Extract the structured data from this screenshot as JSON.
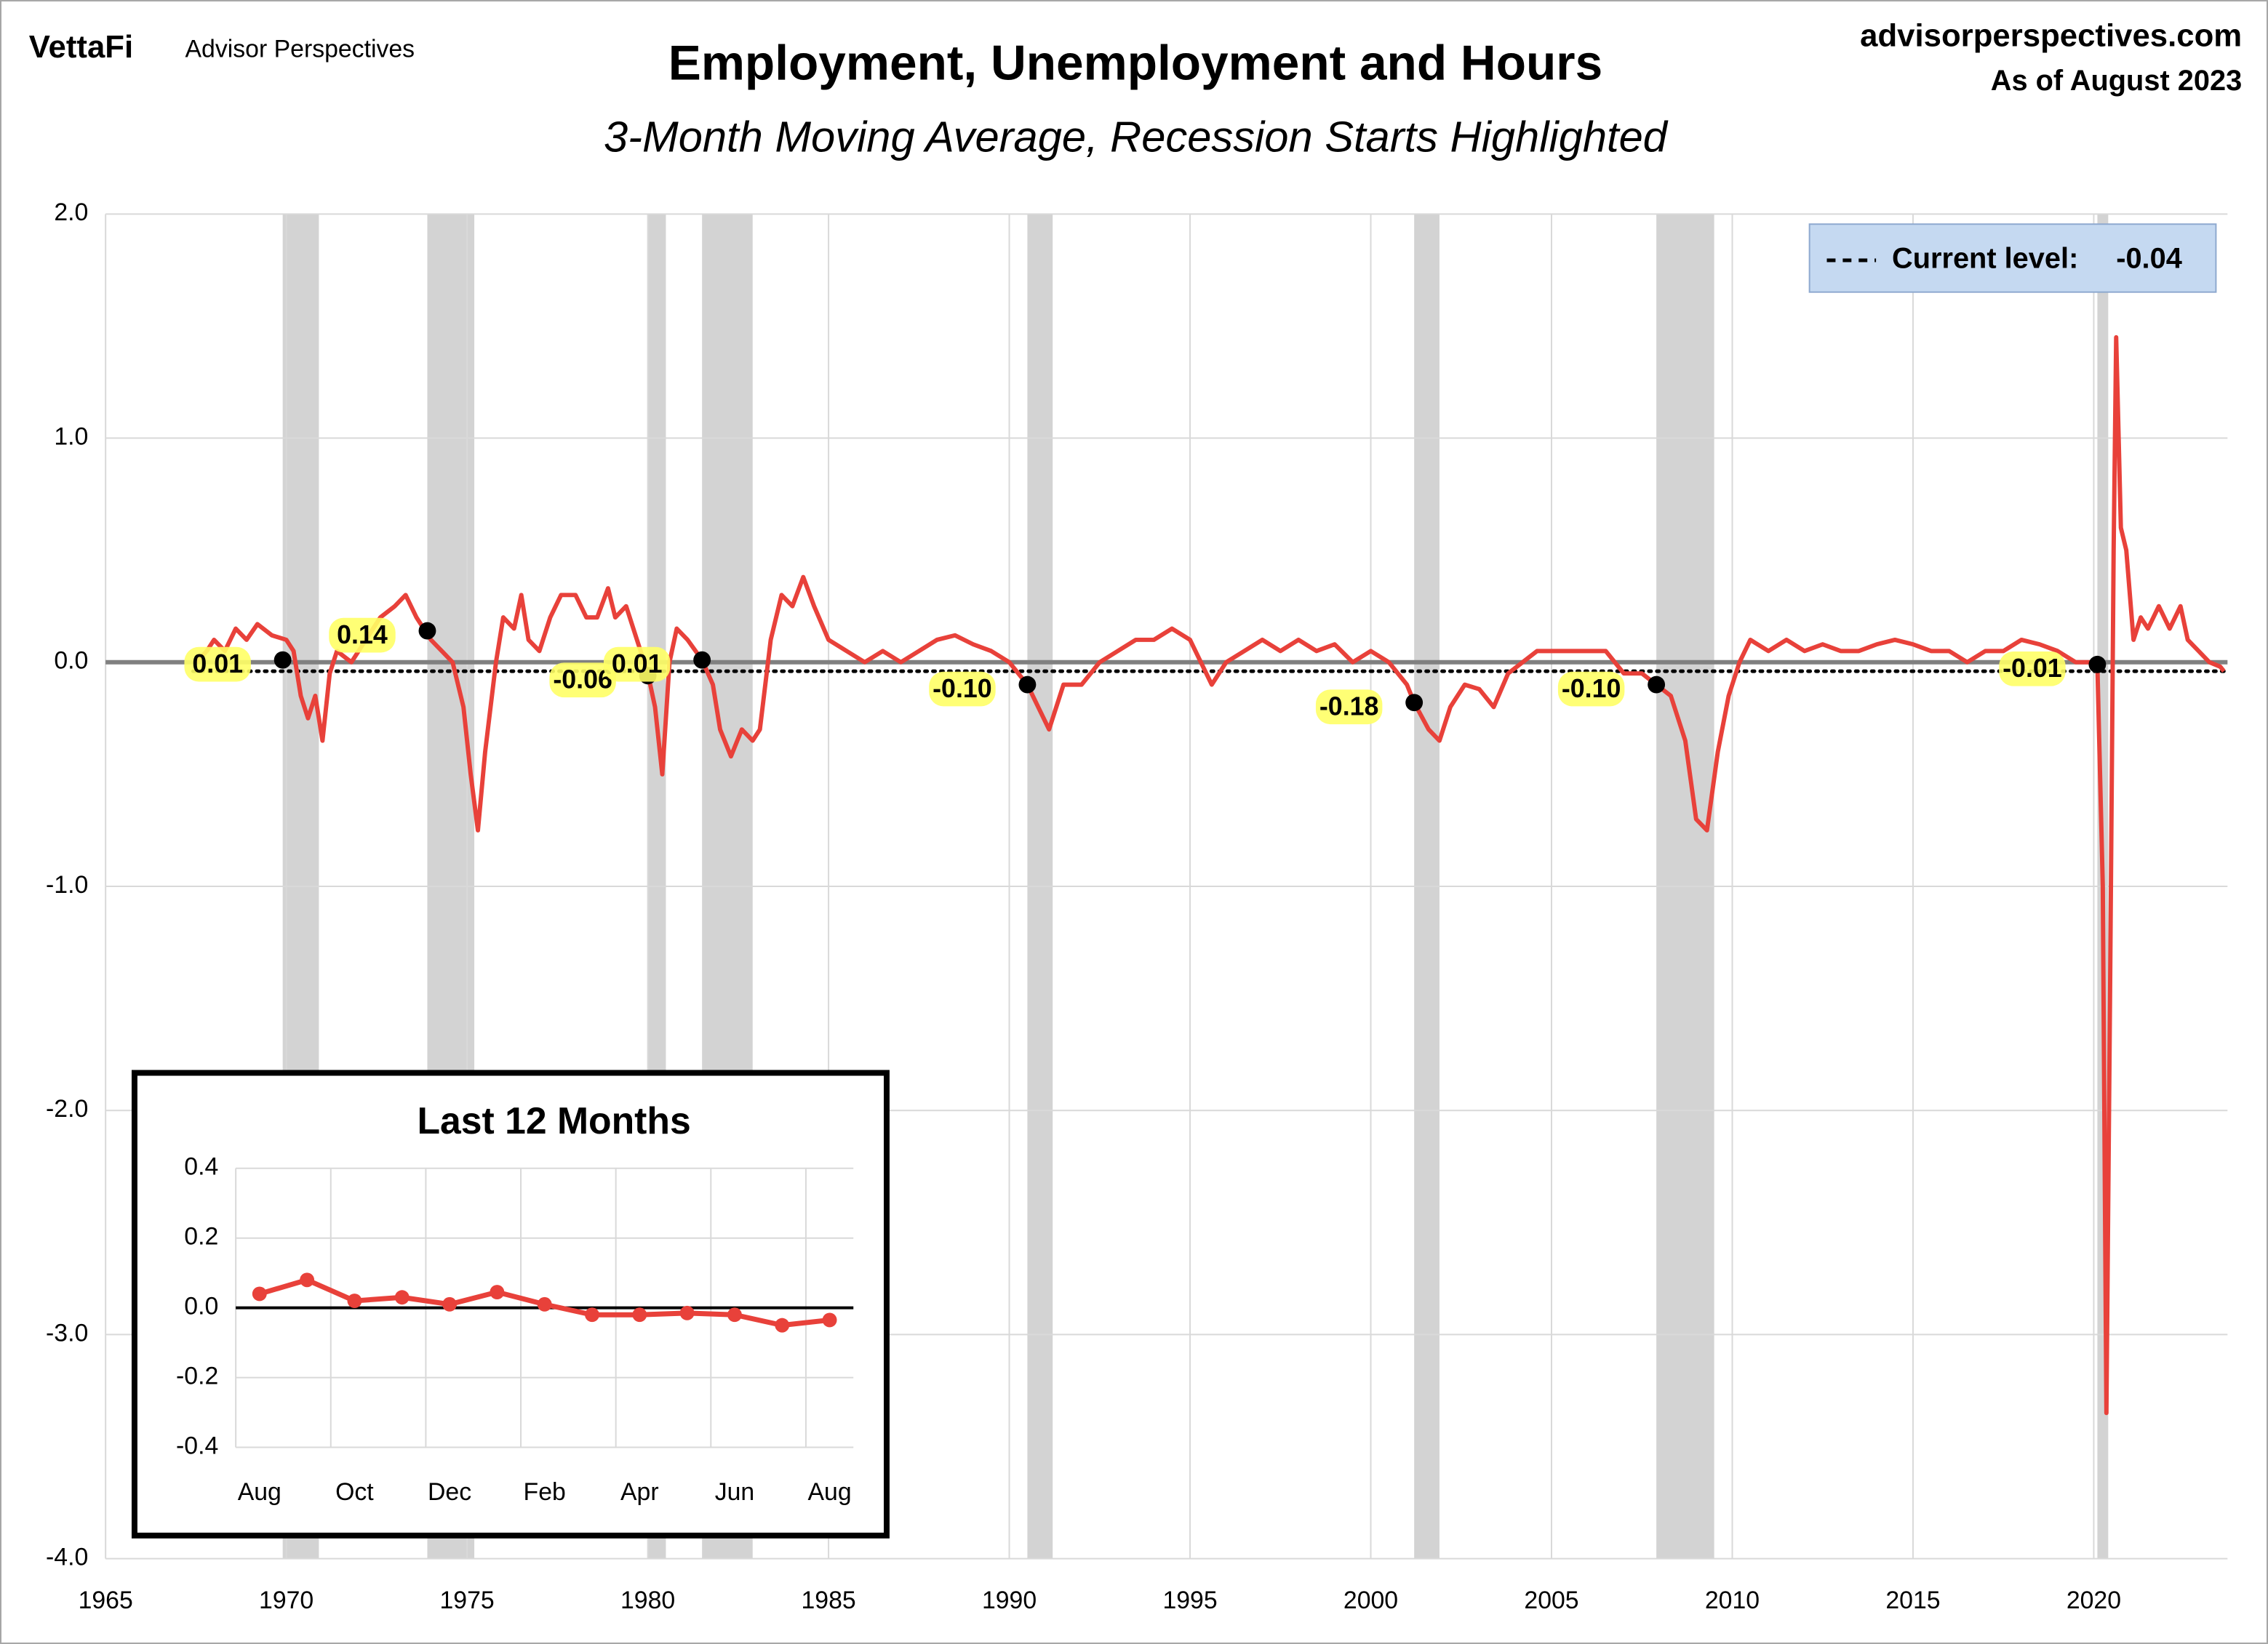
{
  "header": {
    "brand": "VettaFi",
    "brand_sub": "Advisor Perspectives",
    "site": "advisorperspectives.com",
    "as_of": "As of August 2023"
  },
  "chart_data": [
    {
      "type": "line",
      "title": "Employment, Unemployment and Hours",
      "subtitle": "3-Month Moving Average, Recession Starts Highlighted",
      "color": "#e8413a",
      "x": [
        1967.5,
        1967.8,
        1968.0,
        1968.3,
        1968.6,
        1968.9,
        1969.2,
        1969.6,
        1970.0,
        1970.2,
        1970.4,
        1970.6,
        1970.8,
        1971.0,
        1971.2,
        1971.4,
        1971.8,
        1972.2,
        1972.6,
        1973.0,
        1973.3,
        1973.6,
        1974.0,
        1974.3,
        1974.6,
        1974.9,
        1975.1,
        1975.3,
        1975.5,
        1975.8,
        1976.0,
        1976.3,
        1976.5,
        1976.7,
        1977.0,
        1977.3,
        1977.6,
        1978.0,
        1978.3,
        1978.6,
        1978.9,
        1979.1,
        1979.4,
        1979.7,
        1980.0,
        1980.2,
        1980.4,
        1980.6,
        1980.8,
        1981.1,
        1981.5,
        1981.8,
        1982.0,
        1982.3,
        1982.6,
        1982.9,
        1983.1,
        1983.4,
        1983.7,
        1984.0,
        1984.3,
        1984.6,
        1985.0,
        1985.5,
        1986.0,
        1986.5,
        1987.0,
        1987.5,
        1988.0,
        1988.5,
        1989.0,
        1989.5,
        1990.0,
        1990.5,
        1990.8,
        1991.1,
        1991.5,
        1992.0,
        1992.5,
        1993.0,
        1993.5,
        1994.0,
        1994.5,
        1995.0,
        1995.3,
        1995.6,
        1996.0,
        1996.5,
        1997.0,
        1997.5,
        1998.0,
        1998.5,
        1999.0,
        1999.5,
        2000.0,
        2000.5,
        2001.0,
        2001.2,
        2001.6,
        2001.9,
        2002.2,
        2002.6,
        2003.0,
        2003.4,
        2003.8,
        2004.2,
        2004.6,
        2005.0,
        2005.5,
        2006.0,
        2006.5,
        2007.0,
        2007.5,
        2007.9,
        2008.3,
        2008.7,
        2009.0,
        2009.3,
        2009.6,
        2009.9,
        2010.2,
        2010.5,
        2011.0,
        2011.5,
        2012.0,
        2012.5,
        2013.0,
        2013.5,
        2014.0,
        2014.5,
        2015.0,
        2015.5,
        2016.0,
        2016.5,
        2017.0,
        2017.5,
        2018.0,
        2018.5,
        2019.0,
        2019.5,
        2020.0,
        2020.1,
        2020.25,
        2020.35,
        2020.45,
        2020.55,
        2020.62,
        2020.75,
        2020.9,
        2021.1,
        2021.3,
        2021.5,
        2021.8,
        2022.1,
        2022.4,
        2022.6,
        2022.9,
        2023.2,
        2023.5,
        2023.6
      ],
      "values": [
        0.0,
        0.05,
        0.1,
        0.05,
        0.15,
        0.1,
        0.17,
        0.12,
        0.1,
        0.05,
        -0.15,
        -0.25,
        -0.15,
        -0.35,
        -0.05,
        0.05,
        0.0,
        0.1,
        0.2,
        0.25,
        0.3,
        0.2,
        0.1,
        0.05,
        0.0,
        -0.2,
        -0.5,
        -0.75,
        -0.4,
        0.0,
        0.2,
        0.15,
        0.3,
        0.1,
        0.05,
        0.2,
        0.3,
        0.3,
        0.2,
        0.2,
        0.33,
        0.2,
        0.25,
        0.1,
        -0.05,
        -0.2,
        -0.5,
        0.0,
        0.15,
        0.1,
        0.01,
        -0.1,
        -0.3,
        -0.42,
        -0.3,
        -0.35,
        -0.3,
        0.1,
        0.3,
        0.25,
        0.38,
        0.25,
        0.1,
        0.05,
        0.0,
        0.05,
        0.0,
        0.05,
        0.1,
        0.12,
        0.08,
        0.05,
        0.0,
        -0.1,
        -0.2,
        -0.3,
        -0.1,
        -0.1,
        0.0,
        0.05,
        0.1,
        0.1,
        0.15,
        0.1,
        0.0,
        -0.1,
        0.0,
        0.05,
        0.1,
        0.05,
        0.1,
        0.05,
        0.08,
        0.0,
        0.05,
        0.0,
        -0.1,
        -0.18,
        -0.3,
        -0.35,
        -0.2,
        -0.1,
        -0.12,
        -0.2,
        -0.05,
        0.0,
        0.05,
        0.05,
        0.05,
        0.05,
        0.05,
        -0.05,
        -0.05,
        -0.1,
        -0.15,
        -0.35,
        -0.7,
        -0.75,
        -0.4,
        -0.15,
        0.0,
        0.1,
        0.05,
        0.1,
        0.05,
        0.08,
        0.05,
        0.05,
        0.08,
        0.1,
        0.08,
        0.05,
        0.05,
        0.0,
        0.05,
        0.05,
        0.1,
        0.08,
        0.05,
        0.0,
        0.0,
        -0.01,
        -1.0,
        -3.35,
        -1.5,
        0.5,
        1.45,
        0.6,
        0.5,
        0.1,
        0.2,
        0.15,
        0.25,
        0.15,
        0.25,
        0.1,
        0.05,
        0.0,
        -0.02,
        -0.04
      ],
      "xlim": [
        1965,
        2023.7
      ],
      "xticks": [
        1965,
        1970,
        1975,
        1980,
        1985,
        1990,
        1995,
        2000,
        2005,
        2010,
        2015,
        2020
      ],
      "ylim": [
        -4,
        2
      ],
      "yticks": [
        {
          "value": -4,
          "label": "-4.0"
        },
        {
          "value": -3,
          "label": "-3.0"
        },
        {
          "value": -2,
          "label": "-2.0"
        },
        {
          "value": -1,
          "label": "-1.0"
        },
        {
          "value": 0,
          "label": "0.0"
        },
        {
          "value": 1,
          "label": "1.0"
        },
        {
          "value": 2,
          "label": "2.0"
        }
      ],
      "grid": true,
      "negative_tick_color": "#e00000",
      "zero_line_color": "#808080",
      "recession_color": "#d3d3d3",
      "recessions": [
        [
          1969.9,
          1970.9
        ],
        [
          1973.9,
          1975.2
        ],
        [
          1980.0,
          1980.5
        ],
        [
          1981.5,
          1982.9
        ],
        [
          1990.5,
          1991.2
        ],
        [
          2001.2,
          2001.9
        ],
        [
          2007.9,
          2009.5
        ],
        [
          2020.1,
          2020.4
        ]
      ],
      "recession_starts": {
        "x": [
          1969.9,
          1973.9,
          1980.0,
          1981.5,
          1990.5,
          2001.2,
          2007.9,
          2020.1
        ],
        "values": [
          0.01,
          0.14,
          -0.06,
          0.01,
          -0.1,
          -0.18,
          -0.1,
          -0.01
        ],
        "value_labels": [
          "0.01",
          "0.14",
          "-0.06",
          "0.01",
          "-0.10",
          "-0.18",
          "-0.10",
          "-0.01"
        ]
      },
      "current_level": {
        "label": "Current level:",
        "value": -0.04,
        "value_label": "-0.04"
      }
    },
    {
      "type": "line",
      "title": "Last 12 Months",
      "color": "#e8413a",
      "categories": [
        "Aug",
        null,
        "Oct",
        null,
        "Dec",
        null,
        "Feb",
        null,
        "Apr",
        null,
        "Jun",
        null,
        "Aug"
      ],
      "values": [
        0.04,
        0.08,
        0.02,
        0.03,
        0.01,
        0.045,
        0.01,
        -0.02,
        -0.02,
        -0.015,
        -0.02,
        -0.05,
        -0.035
      ],
      "markers": true,
      "ylim": [
        -0.4,
        0.4
      ],
      "yticks": [
        -0.4,
        -0.2,
        {
          "value": 0,
          "label": "0.0"
        },
        0.2,
        0.4
      ],
      "grid": true,
      "negative_tick_color": "#e00000",
      "zero_line_color": "#000000"
    }
  ]
}
